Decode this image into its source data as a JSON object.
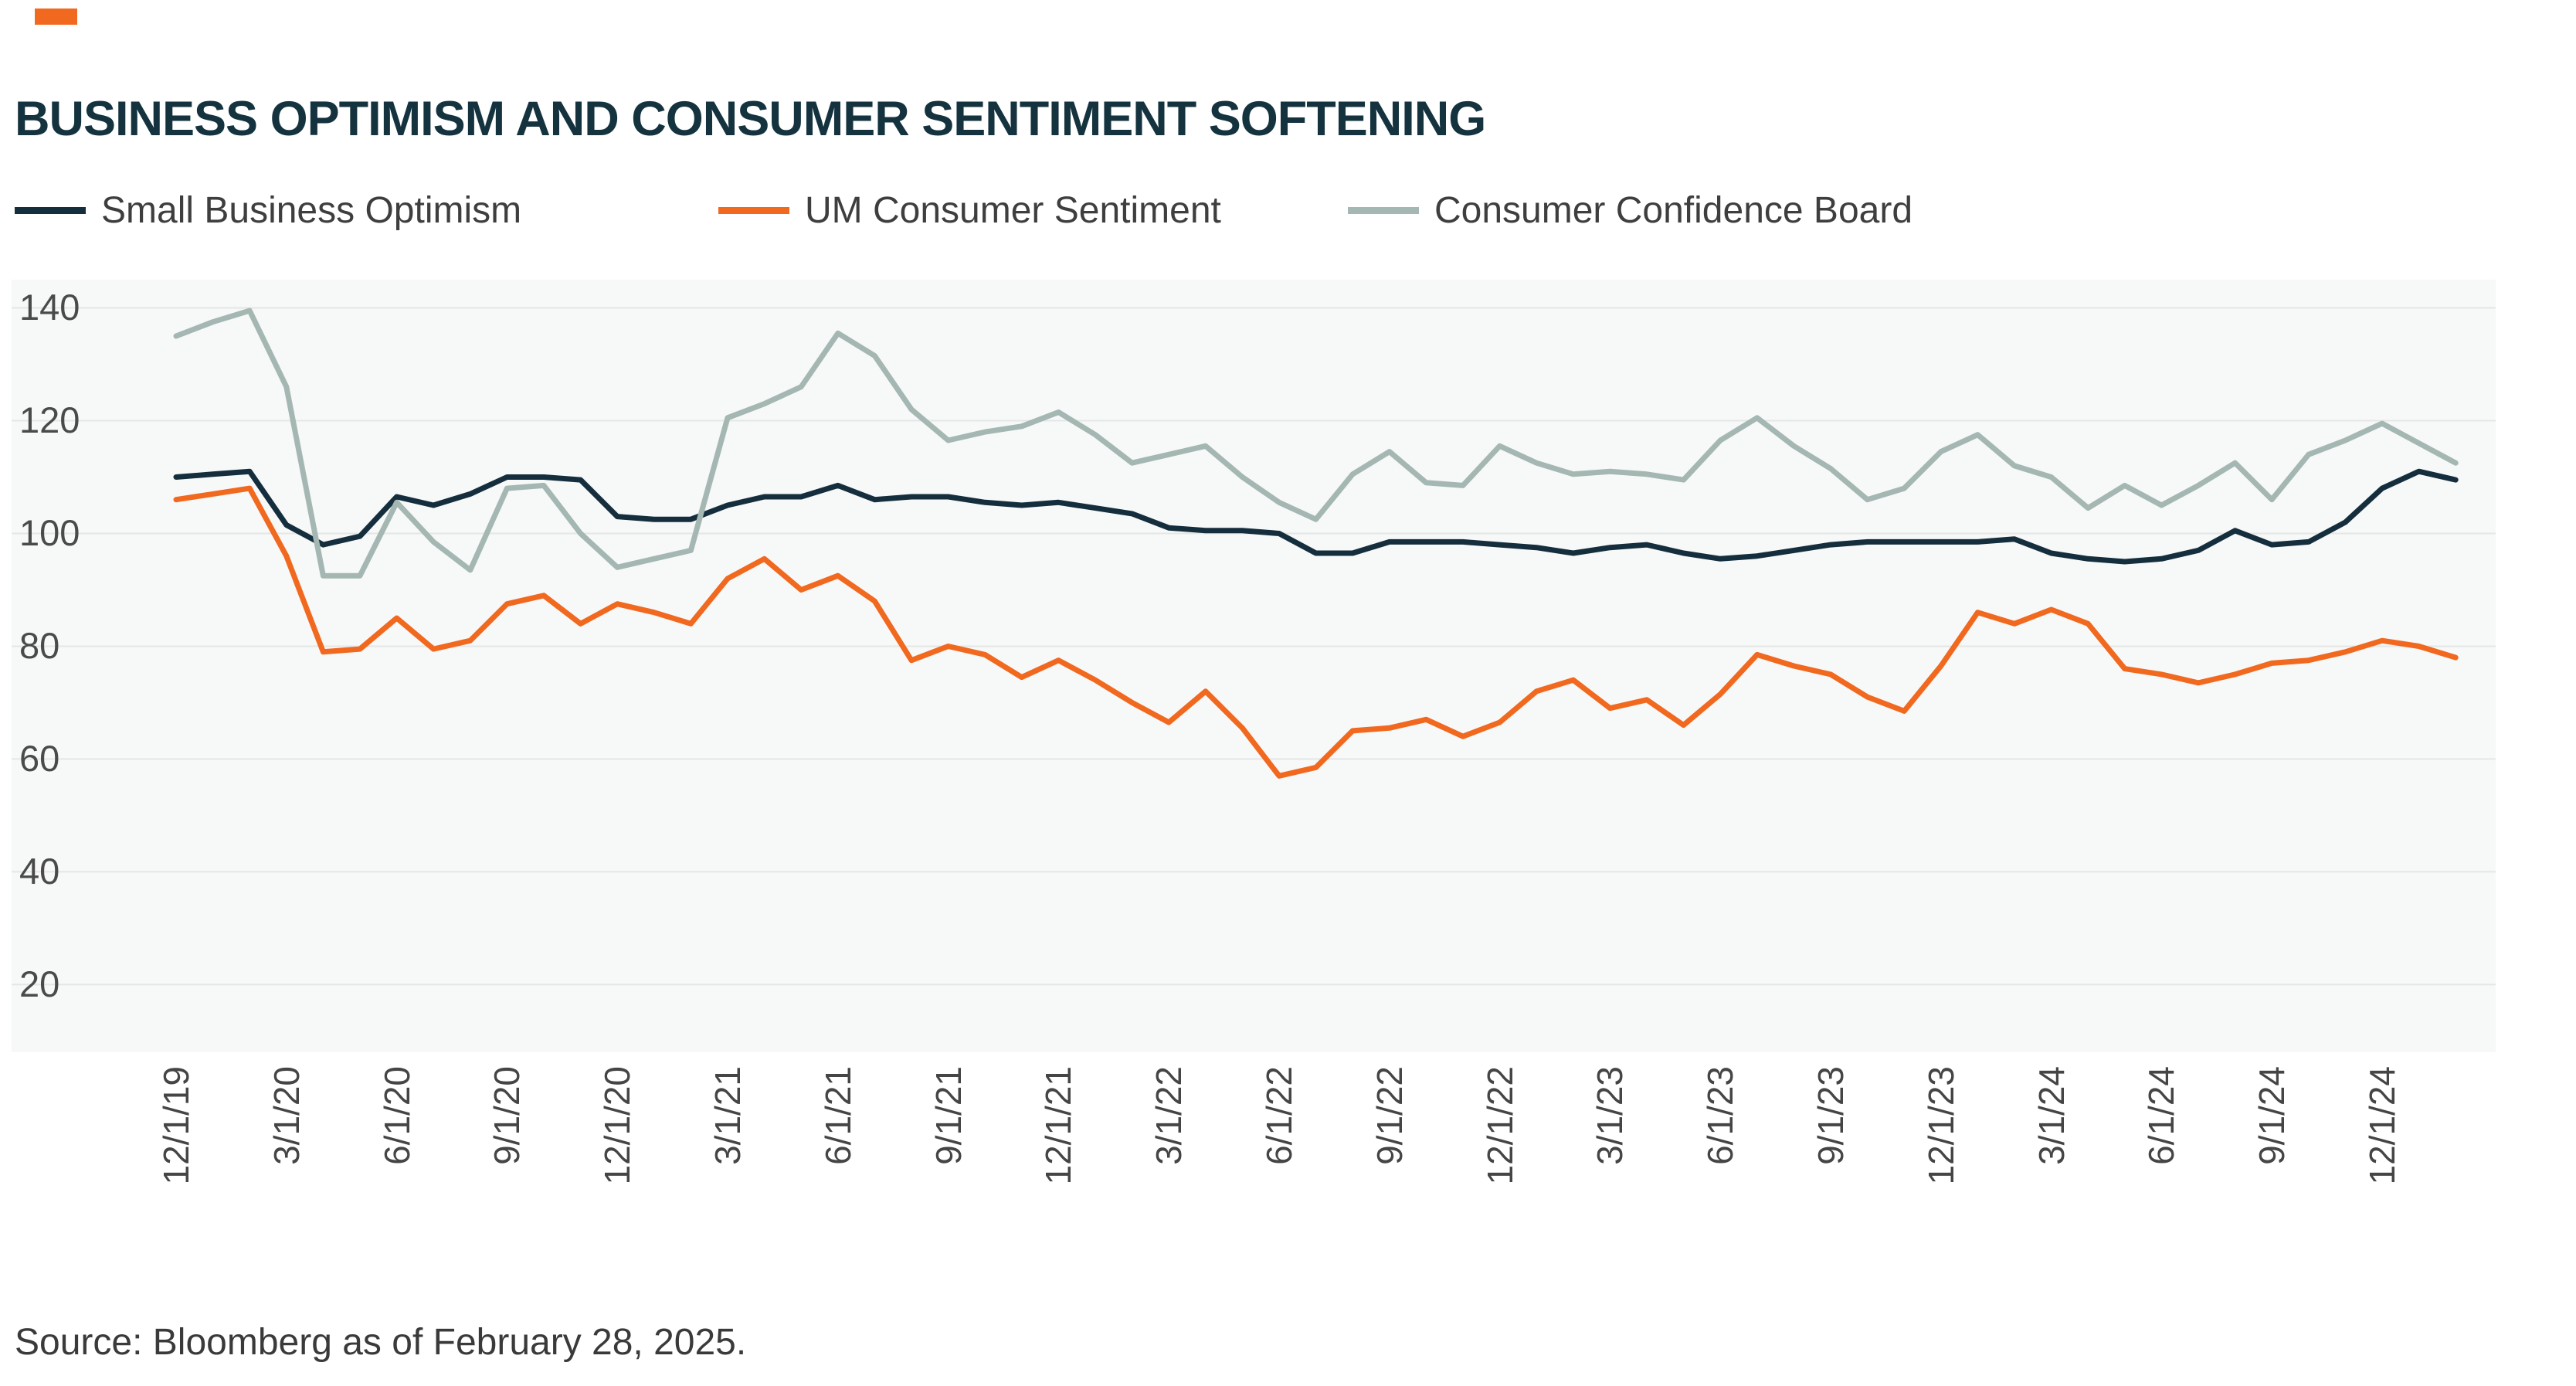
{
  "header": {
    "brand_mark_color": "#F1681F"
  },
  "chart_data": {
    "type": "line",
    "title": "BUSINESS OPTIMISM AND CONSUMER SENTIMENT SOFTENING",
    "source": "Source: Bloomberg as of February 28, 2025.",
    "xlabel": "",
    "ylabel": "",
    "grid": "horizontal",
    "legend_position": "top",
    "yticks": [
      20,
      40,
      60,
      80,
      100,
      120,
      140
    ],
    "ylim": [
      8,
      145
    ],
    "x": [
      "12/1/19",
      "1/1/20",
      "2/1/20",
      "3/1/20",
      "4/1/20",
      "5/1/20",
      "6/1/20",
      "7/1/20",
      "8/1/20",
      "9/1/20",
      "10/1/20",
      "11/1/20",
      "12/1/20",
      "1/1/21",
      "2/1/21",
      "3/1/21",
      "4/1/21",
      "5/1/21",
      "6/1/21",
      "7/1/21",
      "8/1/21",
      "9/1/21",
      "10/1/21",
      "11/1/21",
      "12/1/21",
      "1/1/22",
      "2/1/22",
      "3/1/22",
      "4/1/22",
      "5/1/22",
      "6/1/22",
      "7/1/22",
      "8/1/22",
      "9/1/22",
      "10/1/22",
      "11/1/22",
      "12/1/22",
      "1/1/23",
      "2/1/23",
      "3/1/23",
      "4/1/23",
      "5/1/23",
      "6/1/23",
      "7/1/23",
      "8/1/23",
      "9/1/23",
      "10/1/23",
      "11/1/23",
      "12/1/23",
      "1/1/24",
      "2/1/24",
      "3/1/24",
      "4/1/24",
      "5/1/24",
      "6/1/24",
      "7/1/24",
      "8/1/24",
      "9/1/24",
      "10/1/24",
      "11/1/24",
      "12/1/24",
      "1/1/25",
      "2/1/25"
    ],
    "x_tick_labels": [
      "12/1/19",
      "3/1/20",
      "6/1/20",
      "9/1/20",
      "12/1/20",
      "3/1/21",
      "6/1/21",
      "9/1/21",
      "12/1/21",
      "3/1/22",
      "6/1/22",
      "9/1/22",
      "12/1/22",
      "3/1/23",
      "6/1/23",
      "9/1/23",
      "12/1/23",
      "3/1/24",
      "6/1/24",
      "9/1/24",
      "12/1/24"
    ],
    "series": [
      {
        "name": "Small Business Optimism",
        "color": "#152E3D",
        "values": [
          110,
          110.5,
          111,
          101.5,
          98,
          99.5,
          106.5,
          105,
          107,
          110,
          110,
          109.5,
          103,
          102.5,
          102.5,
          105,
          106.5,
          106.5,
          108.5,
          106,
          106.5,
          106.5,
          105.5,
          105,
          105.5,
          104.5,
          103.5,
          101,
          100.5,
          100.5,
          100,
          96.5,
          96.5,
          98.5,
          98.5,
          98.5,
          98,
          97.5,
          96.5,
          97.5,
          98,
          96.5,
          95.5,
          96,
          97,
          98,
          98.5,
          98.5,
          98.5,
          98.5,
          99,
          96.5,
          95.5,
          95,
          95.5,
          97,
          100.5,
          98,
          98.5,
          102,
          108,
          111,
          109.5
        ]
      },
      {
        "name": "UM Consumer Sentiment",
        "color": "#F1681F",
        "values": [
          106,
          107,
          108,
          96,
          79,
          79.5,
          85,
          79.5,
          81,
          87.5,
          89,
          84,
          87.5,
          86,
          84,
          92,
          95.5,
          90,
          92.5,
          88,
          77.5,
          80,
          78.5,
          74.5,
          77.5,
          74,
          70,
          66.5,
          72,
          65.5,
          57,
          58.5,
          65,
          65.5,
          67,
          64,
          66.5,
          72,
          74,
          69,
          70.5,
          66,
          71.5,
          78.5,
          76.5,
          75,
          71,
          68.5,
          76.5,
          86,
          84,
          86.5,
          84,
          76,
          75,
          73.5,
          75,
          77,
          77.5,
          79,
          81,
          80,
          78
        ]
      },
      {
        "name": "Consumer Confidence Board",
        "color": "#A4B7B3",
        "values": [
          135,
          137.5,
          139.5,
          126,
          92.5,
          92.5,
          105.5,
          98.5,
          93.5,
          108,
          108.5,
          100,
          94,
          95.5,
          97,
          120.5,
          123,
          126,
          135.5,
          131.5,
          122,
          116.5,
          118,
          119,
          121.5,
          117.5,
          112.5,
          114,
          115.5,
          110,
          105.5,
          102.5,
          110.5,
          114.5,
          109,
          108.5,
          115.5,
          112.5,
          110.5,
          111,
          110.5,
          109.5,
          116.5,
          120.5,
          115.5,
          111.5,
          106,
          108,
          114.5,
          117.5,
          112,
          110,
          104.5,
          108.5,
          105,
          108.5,
          112.5,
          106,
          114,
          116.5,
          119.5,
          116,
          112.5
        ]
      }
    ]
  }
}
